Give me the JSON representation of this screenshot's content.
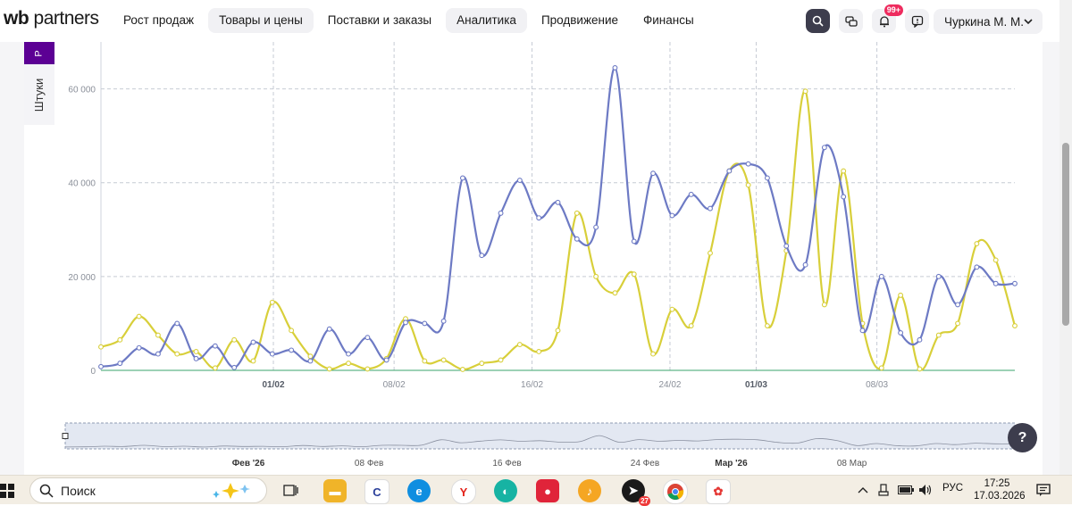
{
  "header": {
    "logo_wb": "wb",
    "logo_partners": "partners",
    "nav": [
      {
        "label": "Рост продаж"
      },
      {
        "label": "Товары и цены"
      },
      {
        "label": "Поставки и заказы"
      },
      {
        "label": "Аналитика"
      },
      {
        "label": "Продвижение"
      },
      {
        "label": "Финансы"
      }
    ],
    "notification_badge": "99+",
    "user_name": "Чуркина М. М."
  },
  "side_tabs": {
    "top_label": "Р",
    "units_label": "Штуки"
  },
  "help_label": "?",
  "colors": {
    "series_blue": "#6d7ac4",
    "series_yellow": "#d8cf3a",
    "accent_purple": "#5c0094",
    "badge": "#ee2b5e"
  },
  "chart_data": {
    "type": "line",
    "x_range": [
      "2026-01-22",
      "2026-03-16"
    ],
    "ylim": [
      0,
      70000
    ],
    "y_ticks": [
      "0",
      "20 000",
      "40 000",
      "60 000"
    ],
    "x_tick_labels": [
      "01/02",
      "08/02",
      "16/02",
      "24/02",
      "01/03",
      "08/03"
    ],
    "x_tick_bold": [
      true,
      false,
      false,
      false,
      true,
      false
    ],
    "grid": true,
    "series": [
      {
        "color": "#6d7ac4",
        "values": [
          800,
          1500,
          4800,
          3500,
          10000,
          2500,
          5200,
          600,
          6000,
          3500,
          4300,
          2000,
          8800,
          3500,
          7000,
          2200,
          10200,
          10000,
          10500,
          41000,
          24500,
          33500,
          40500,
          32500,
          35800,
          28000,
          30500,
          64500,
          27500,
          42000,
          33000,
          37500,
          34500,
          42500,
          44000,
          41000,
          26500,
          22500,
          47500,
          37000,
          8500,
          20000,
          8000,
          6500,
          20000,
          14000,
          22000,
          18500,
          18500
        ]
      },
      {
        "color": "#d8cf3a",
        "values": [
          5000,
          6500,
          11500,
          7500,
          3500,
          4000,
          500,
          6500,
          2000,
          14500,
          8500,
          3000,
          300,
          1500,
          300,
          2500,
          11000,
          2000,
          2200,
          200,
          1500,
          2200,
          5500,
          4000,
          8500,
          33500,
          20000,
          16500,
          20500,
          3500,
          13000,
          9500,
          25000,
          42500,
          39500,
          9500,
          25500,
          59500,
          14000,
          42500,
          10000,
          500,
          16000,
          300,
          7500,
          10000,
          27000,
          23500,
          9500
        ]
      }
    ]
  },
  "navigator": {
    "month_labels": [
      "Фев '26",
      "08 Фев",
      "16 Фев",
      "24 Фев",
      "Мар '26",
      "08 Мар"
    ],
    "month_bold": [
      true,
      false,
      false,
      false,
      true,
      false
    ]
  },
  "taskbar": {
    "search_placeholder": "Поиск",
    "browser_badge": "27",
    "lang": "РУС",
    "time": "17:25",
    "date": "17.03.2026"
  }
}
